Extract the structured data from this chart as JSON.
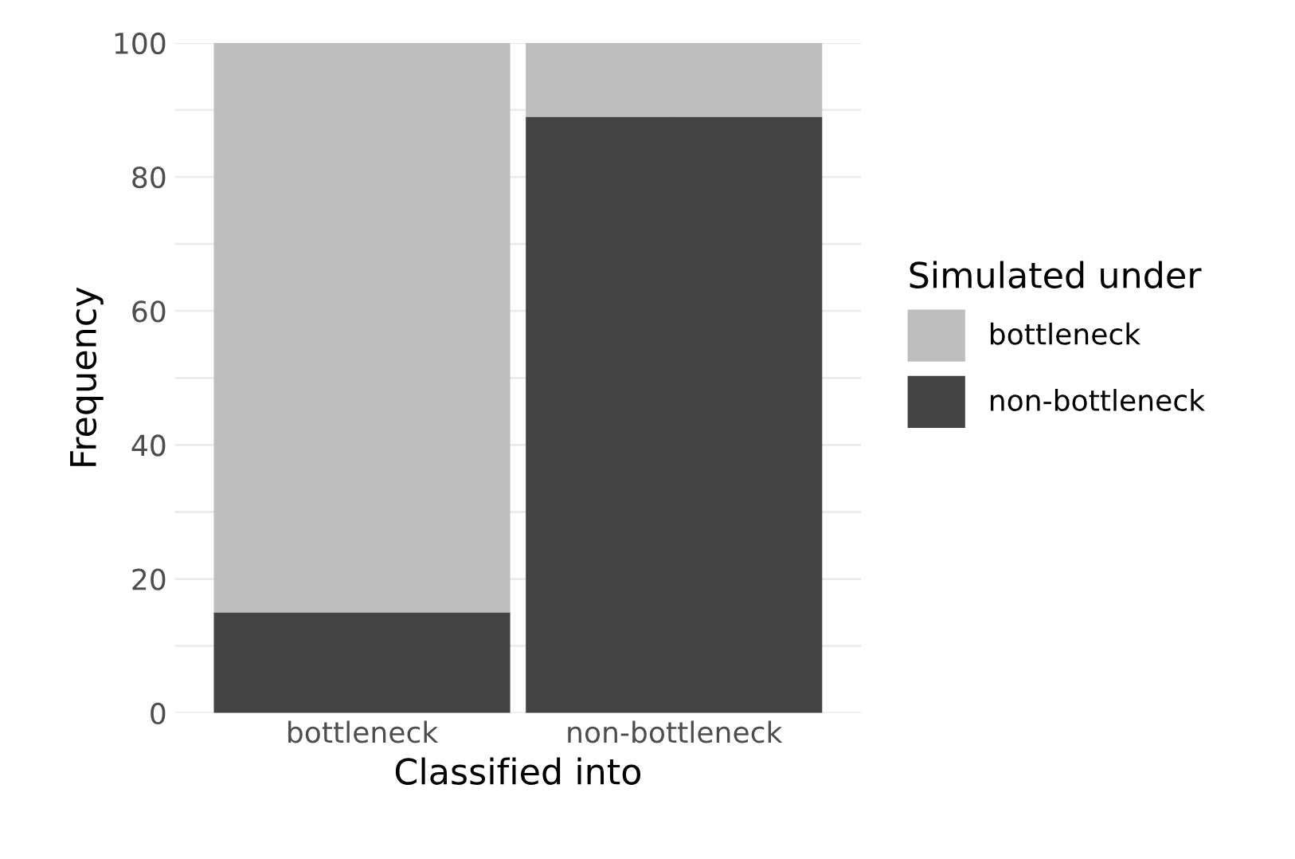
{
  "chart_data": {
    "type": "bar",
    "stacked": true,
    "xlabel": "Classified into",
    "ylabel": "Frequency",
    "legend_title": "Simulated under",
    "legend": "right",
    "categories": [
      "bottleneck",
      "non-bottleneck"
    ],
    "series": [
      {
        "name": "non-bottleneck",
        "color": "#444444",
        "values": [
          15,
          89
        ]
      },
      {
        "name": "bottleneck",
        "color": "#bebebe",
        "values": [
          85,
          11
        ]
      }
    ],
    "ylim": [
      0,
      100
    ],
    "yticks": [
      0,
      {
        "value": 10,
        "label": null
      },
      20,
      {
        "value": 30,
        "label": null
      },
      40,
      {
        "value": 50,
        "label": null
      },
      60,
      {
        "value": 70,
        "label": null
      },
      80,
      {
        "value": 90,
        "label": null
      },
      100
    ],
    "grid": true
  }
}
